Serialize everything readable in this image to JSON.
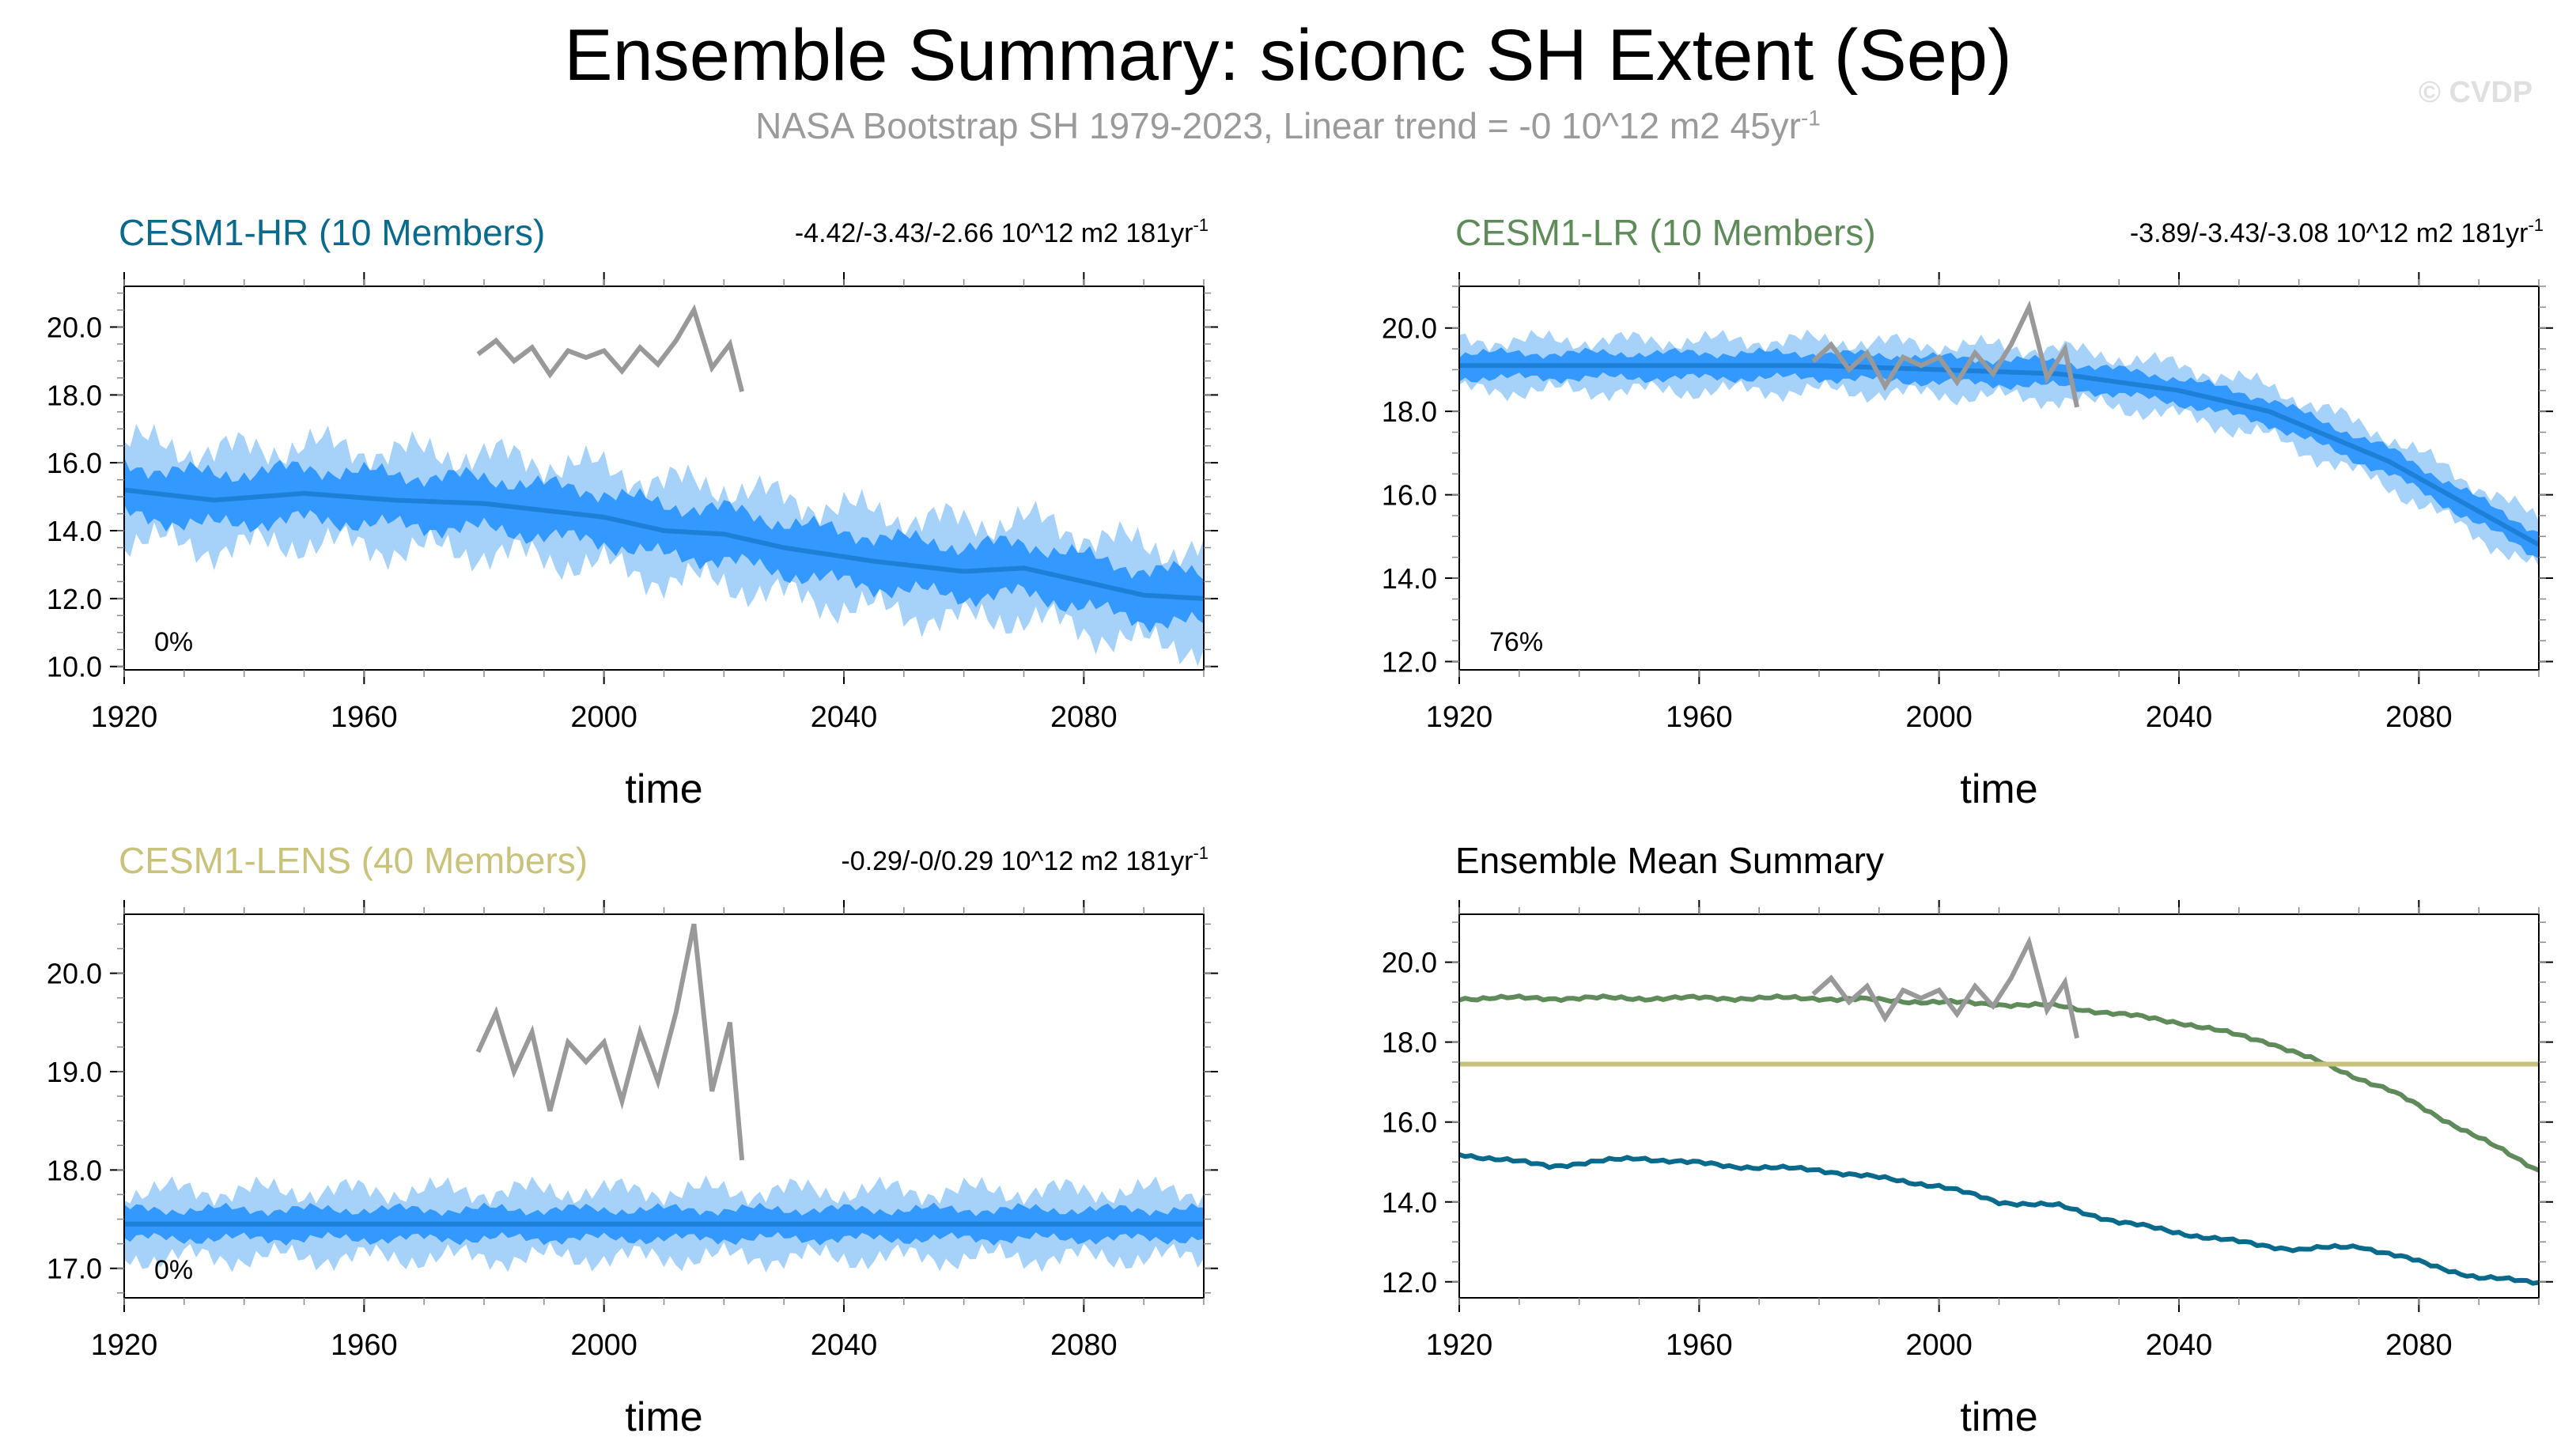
{
  "title": "Ensemble Summary: siconc SH Extent (Sep)",
  "subtitle_text": "NASA Bootstrap SH 1979-2023, Linear trend = -0 10^12 m2 45yr",
  "subtitle_sup": "-1",
  "copyright": "© CVDP",
  "colors": {
    "hr": "#0a6a8c",
    "lr": "#5f8a5a",
    "lens": "#c9c27a",
    "band_outer": "#a6d2fa",
    "band_inner": "#3399ff",
    "mean_line": "#1e7fd6",
    "obs": "#999999"
  },
  "chart_data": [
    {
      "type": "area",
      "panel_title": "CESM1-HR (10 Members)",
      "trend_text": "-4.42/-3.43/-2.66 10^12 m2 181yr",
      "trend_sup": "-1",
      "pct_text": "0%",
      "xlabel": "time",
      "xlim": [
        1920,
        2100
      ],
      "xticks": [
        "1920",
        "1960",
        "2000",
        "2040",
        "2080"
      ],
      "ylim": [
        9.9,
        21.2
      ],
      "yticks": [
        "10.0",
        "12.0",
        "14.0",
        "16.0",
        "18.0",
        "20.0"
      ],
      "mean": {
        "x": [
          1920,
          1935,
          1950,
          1965,
          1980,
          2000,
          2010,
          2020,
          2030,
          2045,
          2060,
          2070,
          2080,
          2090,
          2100
        ],
        "y": [
          15.2,
          14.9,
          15.1,
          14.9,
          14.8,
          14.4,
          14.0,
          13.9,
          13.5,
          13.1,
          12.8,
          12.9,
          12.5,
          12.1,
          12.0
        ]
      },
      "inner_spread": 1.0,
      "outer_spread": 1.9,
      "observed": {
        "x": [
          1979,
          1982,
          1985,
          1988,
          1991,
          1994,
          1997,
          2000,
          2003,
          2006,
          2009,
          2012,
          2015,
          2018,
          2021,
          2023
        ],
        "y": [
          19.2,
          19.6,
          19.0,
          19.4,
          18.6,
          19.3,
          19.1,
          19.3,
          18.7,
          19.4,
          18.9,
          19.6,
          20.5,
          18.8,
          19.5,
          18.1
        ]
      }
    },
    {
      "type": "area",
      "panel_title": "CESM1-LR (10 Members)",
      "trend_text": "-3.89/-3.43/-3.08 10^12 m2 181yr",
      "trend_sup": "-1",
      "pct_text": "76%",
      "xlabel": "time",
      "xlim": [
        1920,
        2100
      ],
      "xticks": [
        "1920",
        "1960",
        "2000",
        "2040",
        "2080"
      ],
      "ylim": [
        11.8,
        21.0
      ],
      "yticks": [
        "12.0",
        "14.0",
        "16.0",
        "18.0",
        "20.0"
      ],
      "mean": {
        "x": [
          1920,
          1940,
          1960,
          1980,
          2000,
          2020,
          2040,
          2055,
          2065,
          2075,
          2085,
          2095,
          2100
        ],
        "y": [
          19.1,
          19.1,
          19.1,
          19.1,
          19.0,
          18.9,
          18.5,
          18.0,
          17.4,
          16.8,
          16.0,
          15.2,
          14.8
        ]
      },
      "inner_spread": 0.4,
      "outer_spread": 0.8,
      "observed": {
        "x": [
          1979,
          1982,
          1985,
          1988,
          1991,
          1994,
          1997,
          2000,
          2003,
          2006,
          2009,
          2012,
          2015,
          2018,
          2021,
          2023
        ],
        "y": [
          19.2,
          19.6,
          19.0,
          19.4,
          18.6,
          19.3,
          19.1,
          19.3,
          18.7,
          19.4,
          18.9,
          19.6,
          20.5,
          18.8,
          19.5,
          18.1
        ]
      }
    },
    {
      "type": "area",
      "panel_title": "CESM1-LENS (40 Members)",
      "trend_text": "-0.29/-0/0.29 10^12 m2 181yr",
      "trend_sup": "-1",
      "pct_text": "0%",
      "xlabel": "time",
      "xlim": [
        1920,
        2100
      ],
      "xticks": [
        "1920",
        "1960",
        "2000",
        "2040",
        "2080"
      ],
      "ylim": [
        16.7,
        20.6
      ],
      "yticks": [
        "17.0",
        "18.0",
        "19.0",
        "20.0"
      ],
      "mean": {
        "x": [
          1920,
          2100
        ],
        "y": [
          17.45,
          17.45
        ]
      },
      "inner_spread": 0.2,
      "outer_spread": 0.45,
      "observed": {
        "x": [
          1979,
          1982,
          1985,
          1988,
          1991,
          1994,
          1997,
          2000,
          2003,
          2006,
          2009,
          2012,
          2015,
          2018,
          2021,
          2023
        ],
        "y": [
          19.2,
          19.6,
          19.0,
          19.4,
          18.6,
          19.3,
          19.1,
          19.3,
          18.7,
          19.4,
          18.9,
          19.6,
          20.5,
          18.8,
          19.5,
          18.1
        ]
      }
    },
    {
      "type": "line",
      "panel_title": "Ensemble Mean Summary",
      "xlabel": "time",
      "xlim": [
        1920,
        2100
      ],
      "xticks": [
        "1920",
        "1960",
        "2000",
        "2040",
        "2080"
      ],
      "ylim": [
        11.6,
        21.2
      ],
      "yticks": [
        "12.0",
        "14.0",
        "16.0",
        "18.0",
        "20.0"
      ],
      "series": [
        {
          "key": "lr",
          "x": [
            1920,
            1940,
            1960,
            1980,
            2000,
            2020,
            2040,
            2055,
            2065,
            2075,
            2085,
            2095,
            2100
          ],
          "y": [
            19.1,
            19.1,
            19.1,
            19.1,
            19.0,
            18.9,
            18.5,
            18.0,
            17.4,
            16.8,
            16.0,
            15.2,
            14.8
          ]
        },
        {
          "key": "lens",
          "x": [
            1920,
            2100
          ],
          "y": [
            17.45,
            17.45
          ]
        },
        {
          "key": "hr",
          "x": [
            1920,
            1935,
            1950,
            1965,
            1980,
            2000,
            2010,
            2020,
            2030,
            2045,
            2060,
            2070,
            2080,
            2090,
            2100
          ],
          "y": [
            15.2,
            14.9,
            15.1,
            14.9,
            14.8,
            14.4,
            14.0,
            13.9,
            13.5,
            13.1,
            12.8,
            12.9,
            12.5,
            12.1,
            12.0
          ]
        }
      ],
      "observed": {
        "x": [
          1979,
          1982,
          1985,
          1988,
          1991,
          1994,
          1997,
          2000,
          2003,
          2006,
          2009,
          2012,
          2015,
          2018,
          2021,
          2023
        ],
        "y": [
          19.2,
          19.6,
          19.0,
          19.4,
          18.6,
          19.3,
          19.1,
          19.3,
          18.7,
          19.4,
          18.9,
          19.6,
          20.5,
          18.8,
          19.5,
          18.1
        ]
      }
    }
  ]
}
